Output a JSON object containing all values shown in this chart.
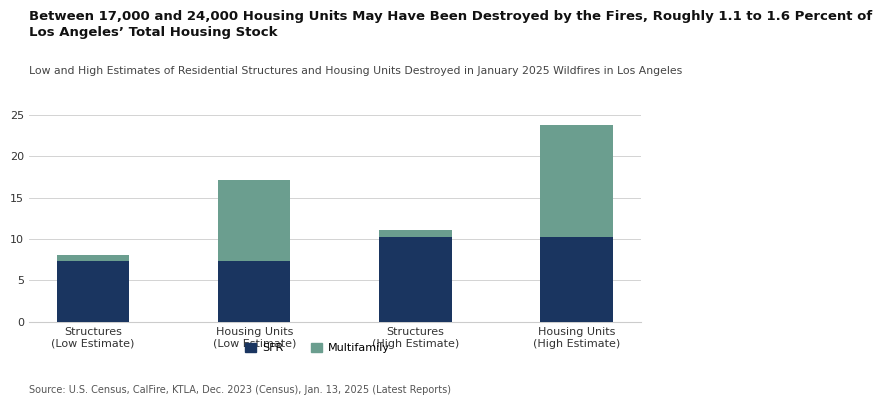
{
  "title_line1": "Between 17,000 and 24,000 Housing Units May Have Been Destroyed by the Fires, Roughly 1.1 to 1.6 Percent of",
  "title_line2": "Los Angeles’ Total Housing Stock",
  "subtitle": "Low and High Estimates of Residential Structures and Housing Units Destroyed in January 2025 Wildfires in Los Angeles",
  "source": "Source: U.S. Census, CalFire, KTLA, Dec. 2023 (Census), Jan. 13, 2025 (Latest Reports)",
  "categories": [
    "Structures\n(Low Estimate)",
    "Housing Units\n(Low Estimate)",
    "Structures\n(High Estimate)",
    "Housing Units\n(High Estimate)"
  ],
  "sfr_values": [
    7.3,
    7.3,
    10.2,
    10.2
  ],
  "multifamily_values": [
    0.7,
    9.9,
    0.9,
    13.6
  ],
  "sfr_color": "#1a3560",
  "multifamily_color": "#6b9e8f",
  "ylim": [
    0,
    25
  ],
  "yticks": [
    0,
    5,
    10,
    15,
    20,
    25
  ],
  "legend_labels": [
    "SFR",
    "Multifamily"
  ],
  "background_color": "#ffffff",
  "grid_color": "#cccccc",
  "title_fontsize": 9.5,
  "subtitle_fontsize": 7.8,
  "source_fontsize": 7.0,
  "tick_fontsize": 8.0,
  "legend_fontsize": 8.0
}
